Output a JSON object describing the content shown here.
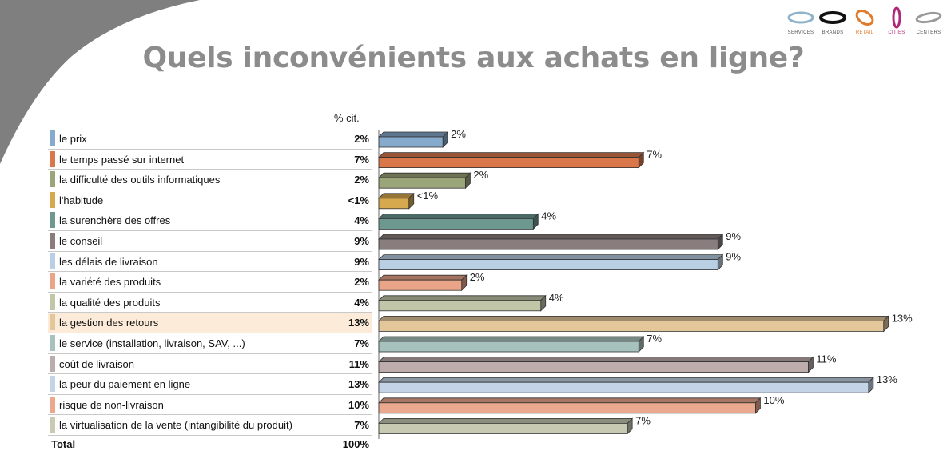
{
  "title": "Quels inconvénients aux achats en ligne?",
  "logos": [
    {
      "label": "SERVICES",
      "icon": "ellipse-icon",
      "color": "#8fb3c8"
    },
    {
      "label": "BRANDS",
      "icon": "ellipse-icon",
      "color": "#111111"
    },
    {
      "label": "RETAIL",
      "icon": "ellipse-icon",
      "color": "#e07b2e"
    },
    {
      "label": "CITIES",
      "icon": "ellipse-icon",
      "color": "#b0287a"
    },
    {
      "label": "CENTERS",
      "icon": "ellipse-icon",
      "color": "#9a9a9a"
    }
  ],
  "table": {
    "column_header": "% cit.",
    "total_label": "Total",
    "total_value": "100%"
  },
  "chart_data": {
    "type": "bar",
    "orientation": "horizontal",
    "style": "3d",
    "categories": [
      "le prix",
      "le temps passé sur internet",
      "la difficulté des outils informatiques",
      "l'habitude",
      "la surenchère des offres",
      "le  conseil",
      "les délais de livraison",
      "la variété des produits",
      "la qualité des produits",
      "la gestion des retours",
      "le service (installation, livraison, SAV, ...)",
      "coût de livraison",
      "la peur du paiement en ligne",
      "risque de non-livraison",
      "la virtualisation de la vente (intangibilité du produit)"
    ],
    "labels": [
      "2%",
      "7%",
      "2%",
      "<1%",
      "4%",
      "9%",
      "9%",
      "2%",
      "4%",
      "13%",
      "7%",
      "11%",
      "13%",
      "10%",
      "7%"
    ],
    "values": [
      1.7,
      6.9,
      2.3,
      0.8,
      4.1,
      9.0,
      9.0,
      2.2,
      4.3,
      13.4,
      6.9,
      11.4,
      13.0,
      10.0,
      6.6
    ],
    "colors": [
      "#86aacb",
      "#d9774a",
      "#9aa57a",
      "#d6a94e",
      "#6d9890",
      "#8a7d7d",
      "#b9cfe4",
      "#eaa488",
      "#c2c6a8",
      "#e3c79b",
      "#a7c2bc",
      "#bcadac",
      "#c4d3e6",
      "#eaa88e",
      "#c8cbb2"
    ],
    "highlight_index": 9,
    "xlim": [
      0,
      14
    ]
  }
}
